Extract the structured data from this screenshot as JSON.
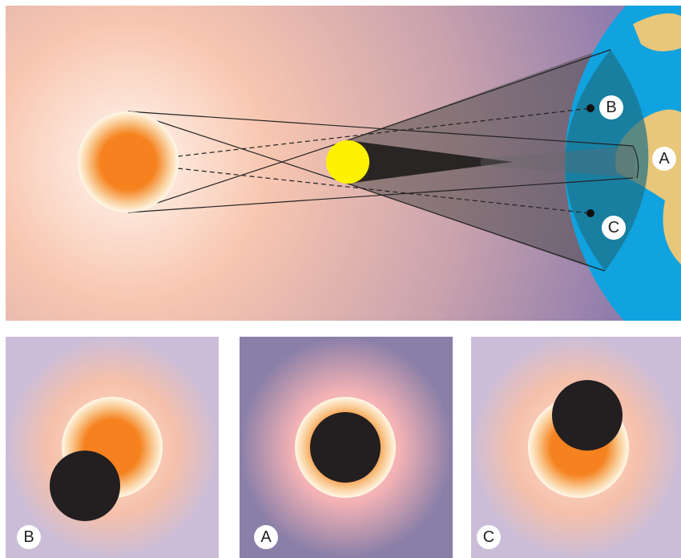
{
  "diagram": {
    "labels": [
      "B",
      "A",
      "C"
    ]
  },
  "panels": [
    {
      "label": "B"
    },
    {
      "label": "A"
    },
    {
      "label": "C"
    }
  ]
}
